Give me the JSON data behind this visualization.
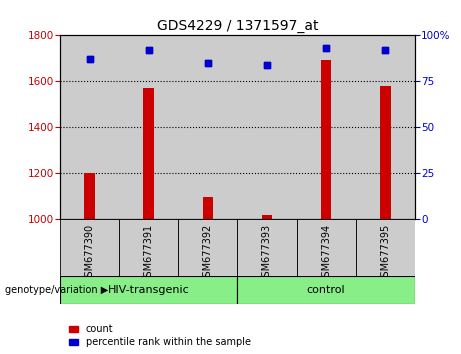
{
  "title": "GDS4229 / 1371597_at",
  "categories": [
    "GSM677390",
    "GSM677391",
    "GSM677392",
    "GSM677393",
    "GSM677394",
    "GSM677395"
  ],
  "counts": [
    1203,
    1572,
    1097,
    1018,
    1693,
    1582
  ],
  "percentiles": [
    87,
    92,
    85,
    84,
    93,
    92
  ],
  "ylim_left": [
    1000,
    1800
  ],
  "ylim_right": [
    0,
    100
  ],
  "yticks_left": [
    1000,
    1200,
    1400,
    1600,
    1800
  ],
  "yticks_right": [
    0,
    25,
    50,
    75,
    100
  ],
  "ytick_labels_right": [
    "0",
    "25",
    "50",
    "75",
    "100%"
  ],
  "bar_color": "#cc0000",
  "scatter_color": "#0000cc",
  "group1_label": "HIV-transgenic",
  "group2_label": "control",
  "group_bg_color": "#88ee88",
  "sample_bg_color": "#cccccc",
  "legend_count": "count",
  "legend_pct": "percentile rank within the sample",
  "genotype_label": "genotype/variation"
}
